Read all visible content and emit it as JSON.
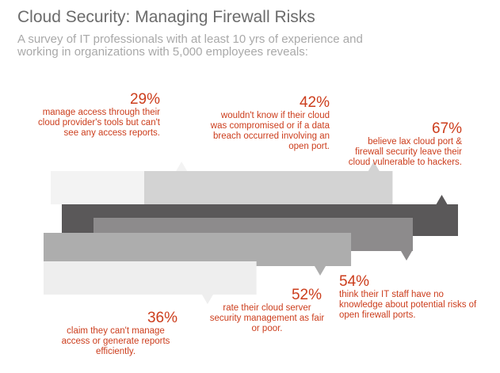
{
  "header": {
    "title": "Cloud Security: Managing Firewall Risks",
    "subtitle": "A survey of IT professionals with at least 10 yrs of experience and working in organizations with 5,000 employees reveals:"
  },
  "colors": {
    "accent": "#cc3d1c",
    "title": "#6b6b6b",
    "subtitle": "#a9a9a9"
  },
  "stats": [
    {
      "pct": "29%",
      "desc": "manage access through their cloud provider's tools but can't see any access reports."
    },
    {
      "pct": "42%",
      "desc": "wouldn't know if their cloud was compromised or if a data breach occurred involving an open port."
    },
    {
      "pct": "67%",
      "desc": "believe lax cloud port & firewall security leave their cloud vulnerable to hackers."
    },
    {
      "pct": "54%",
      "desc": "think their IT staff have no knowledge about potential risks of open firewall ports."
    },
    {
      "pct": "52%",
      "desc": "rate their cloud server security management as fair or poor."
    },
    {
      "pct": "36%",
      "desc": "claim they can't manage access or generate reports efficiently."
    }
  ],
  "chart_data": {
    "type": "bar",
    "categories": [
      "manage access through their cloud provider's tools but can't see any access reports.",
      "wouldn't know if their cloud was compromised or if a data breach occurred involving an open port.",
      "believe lax cloud port & firewall security leave their cloud vulnerable to hackers.",
      "think their IT staff have no knowledge about potential risks of open firewall ports.",
      "rate their cloud server security management as fair or poor.",
      "claim they can't manage access or generate reports efficiently."
    ],
    "values": [
      29,
      42,
      67,
      54,
      52,
      36
    ],
    "bar_colors": [
      "#f3f3f3",
      "#d3d3d3",
      "#5a5859",
      "#8d8b8c",
      "#adadad",
      "#eeeeee"
    ],
    "unit": "%"
  }
}
